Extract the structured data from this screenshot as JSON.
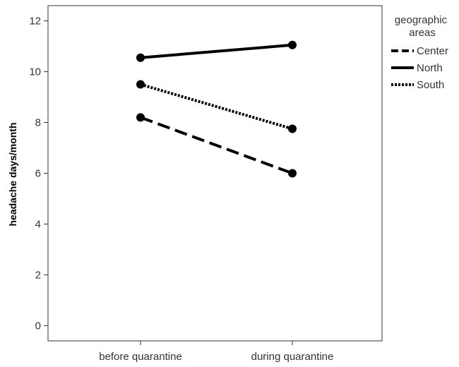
{
  "chart_data": {
    "type": "line",
    "title": "",
    "xlabel": "",
    "ylabel": "headache days/month",
    "categories": [
      "before quarantine",
      "during quarantine"
    ],
    "ylim": [
      -0.6,
      12.6
    ],
    "yticks": [
      0,
      2,
      4,
      6,
      8,
      10,
      12
    ],
    "grid": false,
    "legend": {
      "title": "geographic areas",
      "title_lines": [
        "geographic",
        "areas"
      ],
      "placement": "right"
    },
    "series": [
      {
        "name": "Center",
        "values": [
          8.2,
          6.0
        ],
        "line_style": "dashed",
        "color": "#000000"
      },
      {
        "name": "North",
        "values": [
          10.55,
          11.05
        ],
        "line_style": "solid",
        "color": "#000000"
      },
      {
        "name": "South",
        "values": [
          9.5,
          7.75
        ],
        "line_style": "dotted",
        "color": "#000000"
      }
    ]
  }
}
